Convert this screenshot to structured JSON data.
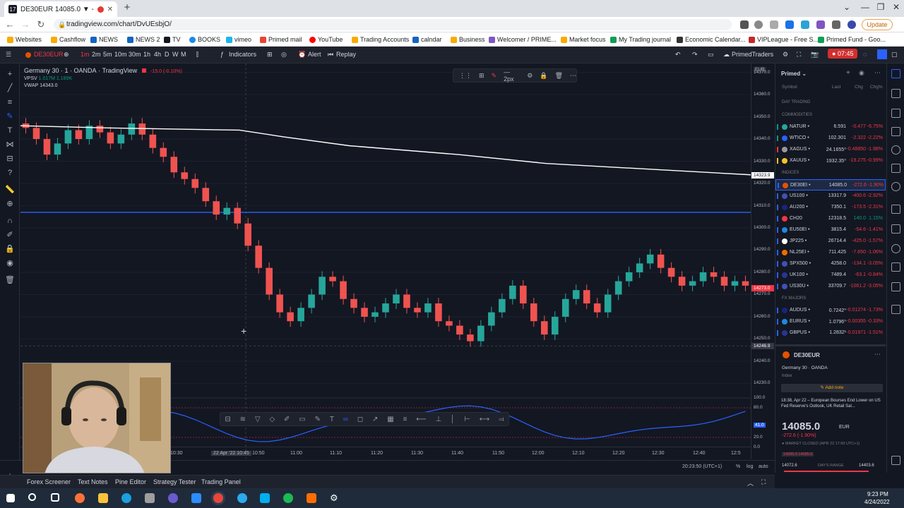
{
  "browser": {
    "tab_title": "DE30EUR 14085.0 ▼ -1.9%",
    "url": "tradingview.com/chart/DvUEsbjO/",
    "update_label": "Update",
    "bookmarks": [
      "Websites",
      "Cashflow",
      "NEWS",
      "NEWS 2",
      "TV",
      "BOOKS",
      "vimeo",
      "Primed mail",
      "YouTube",
      "Trading Accounts",
      "calndar",
      "Business",
      "Welcomer / PRIME...",
      "Market focus",
      "My Trading journal",
      "Economic Calendar...",
      "VIPLeague - Free S...",
      "Primed Fund - Goo..."
    ]
  },
  "toolbar": {
    "symbol": "DE30EUR",
    "timeframes": [
      "1m",
      "2m",
      "5m",
      "10m",
      "30m",
      "1h",
      "4h",
      "D",
      "W",
      "M"
    ],
    "indicators_label": "Indicators",
    "alert_label": "Alert",
    "replay_label": "Replay",
    "layout_name": "PrimedTraders",
    "timer": "07:45"
  },
  "legend": {
    "title": "Germany 30",
    "interval": "1",
    "broker": "OANDA",
    "source": "TradingView",
    "change": "-15.0 (-0.10%)",
    "vpsv_label": "VPSV",
    "vpsv_value": "1.017M 1.189K",
    "vwap_label": "VWAP",
    "vwap_value": "14343.0"
  },
  "draw_toolbar": {
    "width_label": "2px"
  },
  "chart_data": {
    "type": "candlestick",
    "symbol": "DE30EUR",
    "currency": "EUR",
    "y_ticks": [
      14370,
      14360,
      14350,
      14340,
      14330,
      14320,
      14310,
      14300,
      14290,
      14280,
      14270,
      14260,
      14250,
      14240,
      14230
    ],
    "ylim": [
      14226,
      14374
    ],
    "x_ticks": [
      "10:30",
      "22 Apr '22  10:45",
      "10:50",
      "11:00",
      "11:10",
      "11:20",
      "11:30",
      "11:40",
      "11:50",
      "12:00",
      "12:10",
      "12:20",
      "12:30",
      "12:40",
      "12:5"
    ],
    "price_tags": [
      {
        "label": "14323.9",
        "price": 14323.9,
        "color": "#ffffff"
      },
      {
        "label": "14273.0",
        "price": 14273.0,
        "color": "#f23645"
      },
      {
        "label": "14246.9",
        "price": 14246.9,
        "color": "#363a45"
      }
    ],
    "horizontal_line": 14307,
    "vwap_line": [
      [
        0,
        14346
      ],
      [
        0.12,
        14345
      ],
      [
        0.3,
        14344
      ],
      [
        0.36,
        14341
      ],
      [
        0.45,
        14337
      ],
      [
        0.6,
        14333
      ],
      [
        0.72,
        14329
      ],
      [
        1,
        14323.9
      ]
    ],
    "close_path": [
      14345,
      14340,
      14333,
      14338,
      14344,
      14340,
      14346,
      14343,
      14338,
      14342,
      14347,
      14342,
      14336,
      14332,
      14325,
      14322,
      14318,
      14312,
      14306,
      14309,
      14302,
      14292,
      14282,
      14270,
      14262,
      14258,
      14264,
      14270,
      14278,
      14276,
      14268,
      14264,
      14260,
      14262,
      14266,
      14270,
      14264,
      14262,
      14266,
      14258,
      14256,
      14252,
      14249,
      14256,
      14262,
      14268,
      14274,
      14266,
      14258,
      14252,
      14260,
      14268,
      14272,
      14266,
      14262,
      14270,
      14276,
      14280,
      14284,
      14288,
      14282,
      14278,
      14274,
      14276,
      14280,
      14278,
      14274,
      14276,
      14274
    ],
    "oscillator": {
      "ticks": [
        "100.0",
        "80.0",
        "41.0",
        "20.0",
        "0.0"
      ],
      "current": "41.0"
    }
  },
  "time_axis": {
    "clock": "20:23:50 (UTC+1)",
    "pct": "%",
    "log": "log",
    "auto": "auto"
  },
  "bottom_tabs": [
    "Forex Screener",
    "Text Notes",
    "Pine Editor",
    "Strategy Tester",
    "Trading Panel"
  ],
  "watchlist": {
    "name": "Primed",
    "columns": [
      "Symbol",
      "Last",
      "Chg",
      "Chg%"
    ],
    "section_day": "DAY TRADING",
    "sections": [
      {
        "title": "COMMODITIES",
        "rows": [
          {
            "sym": "NATUR •",
            "last": "6.591",
            "chg": "-0.477",
            "pct": "-6.75%",
            "flag": "#26a69a",
            "dot": "#089981"
          },
          {
            "sym": "WTICO •",
            "last": "102.301",
            "chg": "-2.322",
            "pct": "-2.22%",
            "flag": "#2962ff",
            "dot": "#089981"
          },
          {
            "sym": "XAGUS •",
            "last": "24.1655⁰",
            "chg": "-0.48850",
            "pct": "-1.98%",
            "flag": "#9598a1",
            "dot": "#f23645"
          },
          {
            "sym": "XAUUS •",
            "last": "1932.35⁰",
            "chg": "-19.275",
            "pct": "-0.99%",
            "flag": "#f7c325",
            "dot": "#f7c325"
          }
        ]
      },
      {
        "title": "INDICES",
        "rows": [
          {
            "sym": "DE30EI •",
            "last": "14085.0",
            "chg": "-272.6",
            "pct": "-1.90%",
            "flag": "#e65100",
            "dot": "#2962ff",
            "active": true
          },
          {
            "sym": "US100 •",
            "last": "13317.9",
            "chg": "-400.6",
            "pct": "-2.92%",
            "flag": "#3f51b5",
            "dot": "#2962ff"
          },
          {
            "sym": "AU200 •",
            "last": "7350.1",
            "chg": "-173.5",
            "pct": "-2.31%",
            "flag": "#1a237e",
            "dot": "#2962ff"
          },
          {
            "sym": "CH20",
            "last": "12318.5",
            "chg": "140.0",
            "pct": "1.15%",
            "flag": "#f23645",
            "dot": "#2962ff",
            "up": true
          },
          {
            "sym": "EU50EI •",
            "last": "3815.4",
            "chg": "-54.6",
            "pct": "-1.41%",
            "flag": "#1e88e5",
            "dot": "#2962ff"
          },
          {
            "sym": "JP225 •",
            "last": "26714.4",
            "chg": "-425.0",
            "pct": "-1.57%",
            "flag": "#ffffff",
            "dot": "#2962ff"
          },
          {
            "sym": "NL25EI •",
            "last": "711.425",
            "chg": "-7.650",
            "pct": "-1.06%",
            "flag": "#ef6c00",
            "dot": "#2962ff"
          },
          {
            "sym": "SPX500 •",
            "last": "4258.0",
            "chg": "-134.1",
            "pct": "-3.05%",
            "flag": "#3f51b5",
            "dot": "#2962ff"
          },
          {
            "sym": "UK100 •",
            "last": "7489.4",
            "chg": "-63.1",
            "pct": "-0.84%",
            "flag": "#283593",
            "dot": "#2962ff"
          },
          {
            "sym": "US30U •",
            "last": "33709.7",
            "chg": "-1061.2",
            "pct": "-3.05%",
            "flag": "#3f51b5",
            "dot": "#2962ff"
          }
        ]
      },
      {
        "title": "FX MAJORS",
        "rows": [
          {
            "sym": "AUDUS •",
            "last": "0.7242⁰",
            "chg": "-0.01274",
            "pct": "-1.73%",
            "flag": "#1a237e",
            "dot": "#2962ff"
          },
          {
            "sym": "EURUS •",
            "last": "1.0796⁰",
            "chg": "-0.00355",
            "pct": "-0.33%",
            "flag": "#1e88e5",
            "dot": "#2962ff"
          },
          {
            "sym": "GBPUS •",
            "last": "1.2832¹",
            "chg": "-0.01971",
            "pct": "-1.51%",
            "flag": "#283593",
            "dot": "#2962ff"
          }
        ]
      }
    ]
  },
  "details": {
    "symbol": "DE30EUR",
    "name": "Germany 30",
    "broker": "OANDA",
    "type": "Index",
    "add_note": "Add note",
    "news": "18:38, Apr 22 – European Bourses End Lower on US Fed Reserve's Outlook, UK Retail Sal...",
    "price": "14085.0",
    "currency": "EUR",
    "change": "-272.6 (-1.90%)",
    "status": "MARKET CLOSED",
    "status_time": "(APR 22 17:00 UTC+1)",
    "low": "14072.6",
    "range_label": "DAY'S RANGE",
    "high": "14403.6",
    "mini": "14085.0  14085.6"
  },
  "taskbar": {
    "time": "9:23 PM",
    "date": "4/24/2022"
  }
}
